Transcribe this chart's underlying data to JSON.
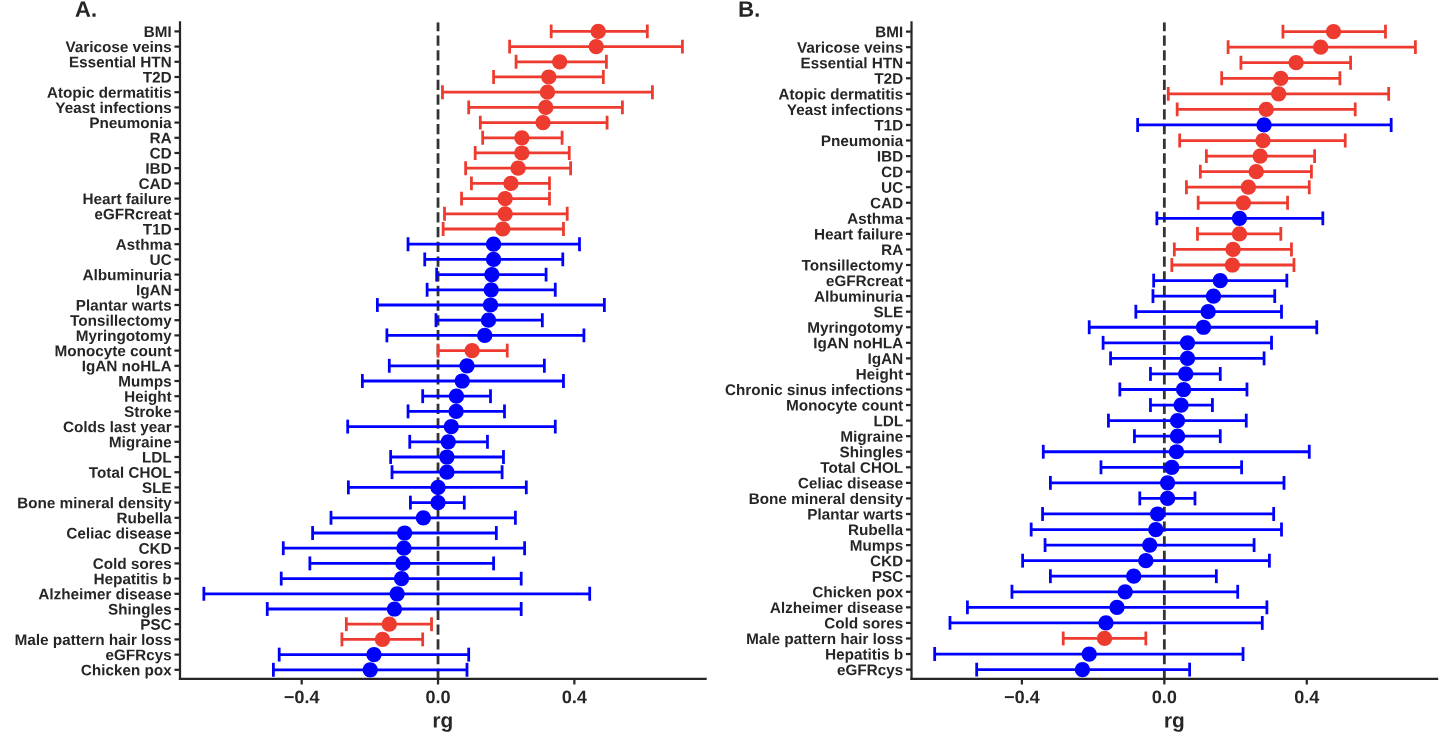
{
  "chart_data": [
    {
      "type": "scatter",
      "title": "A.",
      "xlabel": "rg",
      "xlim": [
        -0.757,
        0.785
      ],
      "xticks": [
        {
          "value": -0.4,
          "label": "−0.4"
        },
        {
          "value": 0,
          "label": "0.0"
        },
        {
          "value": 0.4,
          "label": "0.4"
        }
      ],
      "orientation": "horizontal",
      "marker": "circle",
      "grid": false,
      "legend": false,
      "ref_lines": [
        {
          "axis": "x",
          "value": 0,
          "line_style": "dashed",
          "color": "#333333"
        }
      ],
      "categories": [
        "BMI",
        "Varicose veins",
        "Essential HTN",
        "T2D",
        "Atopic dermatitis",
        "Yeast infections",
        "Pneumonia",
        "RA",
        "CD",
        "IBD",
        "CAD",
        "Heart failure",
        "eGFRcreat",
        "T1D",
        "Asthma",
        "UC",
        "Albuminuria",
        "IgAN",
        "Plantar warts",
        "Tonsillectomy",
        "Myringotomy",
        "Monocyte count",
        "IgAN noHLA",
        "Mumps",
        "Height",
        "Stroke",
        "Colds last year",
        "Migraine",
        "LDL",
        "Total CHOL",
        "SLE",
        "Bone mineral density",
        "Rubella",
        "Celiac disease",
        "CKD",
        "Cold sores",
        "Hepatitis b",
        "Alzheimer disease",
        "Shingles",
        "PSC",
        "Male pattern hair loss",
        "eGFRcys",
        "Chicken pox"
      ],
      "values": [
        0.47,
        0.464,
        0.357,
        0.325,
        0.321,
        0.316,
        0.308,
        0.246,
        0.246,
        0.235,
        0.214,
        0.197,
        0.197,
        0.19,
        0.163,
        0.163,
        0.158,
        0.156,
        0.154,
        0.148,
        0.137,
        0.1,
        0.085,
        0.071,
        0.054,
        0.053,
        0.039,
        0.03,
        0.026,
        0.026,
        0.0,
        0.0,
        -0.043,
        -0.098,
        -0.1,
        -0.103,
        -0.107,
        -0.12,
        -0.128,
        -0.143,
        -0.163,
        -0.188,
        -0.199
      ],
      "errors": [
        [
          0.332,
          0.614
        ],
        [
          0.21,
          0.717
        ],
        [
          0.229,
          0.494
        ],
        [
          0.163,
          0.485
        ],
        [
          0.013,
          0.629
        ],
        [
          0.09,
          0.541
        ],
        [
          0.124,
          0.496
        ],
        [
          0.131,
          0.364
        ],
        [
          0.109,
          0.385
        ],
        [
          0.081,
          0.389
        ],
        [
          0.098,
          0.327
        ],
        [
          0.069,
          0.327
        ],
        [
          0.019,
          0.379
        ],
        [
          0.015,
          0.368
        ],
        [
          -0.088,
          0.415
        ],
        [
          -0.039,
          0.366
        ],
        [
          -0.004,
          0.317
        ],
        [
          -0.032,
          0.344
        ],
        [
          -0.178,
          0.488
        ],
        [
          -0.006,
          0.306
        ],
        [
          -0.15,
          0.428
        ],
        [
          0.0,
          0.203
        ],
        [
          -0.143,
          0.312
        ],
        [
          -0.222,
          0.368
        ],
        [
          -0.045,
          0.154
        ],
        [
          -0.088,
          0.195
        ],
        [
          -0.265,
          0.344
        ],
        [
          -0.083,
          0.145
        ],
        [
          -0.139,
          0.192
        ],
        [
          -0.135,
          0.188
        ],
        [
          -0.263,
          0.259
        ],
        [
          -0.081,
          0.077
        ],
        [
          -0.314,
          0.227
        ],
        [
          -0.368,
          0.171
        ],
        [
          -0.454,
          0.254
        ],
        [
          -0.376,
          0.163
        ],
        [
          -0.46,
          0.244
        ],
        [
          -0.687,
          0.445
        ],
        [
          -0.501,
          0.244
        ],
        [
          -0.269,
          -0.019
        ],
        [
          -0.282,
          -0.045
        ],
        [
          -0.466,
          0.09
        ],
        [
          -0.483,
          0.085
        ]
      ],
      "colors": [
        "#ee3b2f",
        "#ee3b2f",
        "#ee3b2f",
        "#ee3b2f",
        "#ee3b2f",
        "#ee3b2f",
        "#ee3b2f",
        "#ee3b2f",
        "#ee3b2f",
        "#ee3b2f",
        "#ee3b2f",
        "#ee3b2f",
        "#ee3b2f",
        "#ee3b2f",
        "#0000ff",
        "#0000ff",
        "#0000ff",
        "#0000ff",
        "#0000ff",
        "#0000ff",
        "#0000ff",
        "#ee3b2f",
        "#0000ff",
        "#0000ff",
        "#0000ff",
        "#0000ff",
        "#0000ff",
        "#0000ff",
        "#0000ff",
        "#0000ff",
        "#0000ff",
        "#0000ff",
        "#0000ff",
        "#0000ff",
        "#0000ff",
        "#0000ff",
        "#0000ff",
        "#0000ff",
        "#0000ff",
        "#ee3b2f",
        "#ee3b2f",
        "#0000ff",
        "#0000ff"
      ]
    },
    {
      "type": "scatter",
      "title": "B.",
      "xlabel": "rg",
      "xlim": [
        -0.71,
        0.766
      ],
      "xticks": [
        {
          "value": -0.4,
          "label": "−0.4"
        },
        {
          "value": 0,
          "label": "0.0"
        },
        {
          "value": 0.4,
          "label": "0.4"
        }
      ],
      "orientation": "horizontal",
      "marker": "circle",
      "grid": false,
      "legend": false,
      "ref_lines": [
        {
          "axis": "x",
          "value": 0,
          "line_style": "dashed",
          "color": "#333333"
        }
      ],
      "categories": [
        "BMI",
        "Varicose veins",
        "Essential HTN",
        "T2D",
        "Atopic dermatitis",
        "Yeast infections",
        "T1D",
        "Pneumonia",
        "IBD",
        "CD",
        "UC",
        "CAD",
        "Asthma",
        "Heart failure",
        "RA",
        "Tonsillectomy",
        "eGFRcreat",
        "Albuminuria",
        "SLE",
        "Myringotomy",
        "IgAN noHLA",
        "IgAN",
        "Height",
        "Chronic sinus infections",
        "Monocyte count",
        "LDL",
        "Migraine",
        "Shingles",
        "Total CHOL",
        "Celiac disease",
        "Bone mineral density",
        "Plantar warts",
        "Rubella",
        "Mumps",
        "CKD",
        "PSC",
        "Chicken pox",
        "Alzheimer disease",
        "Cold sores",
        "Male pattern hair loss",
        "Hepatitis b",
        "eGFRcys"
      ],
      "values": [
        0.475,
        0.439,
        0.37,
        0.327,
        0.321,
        0.286,
        0.28,
        0.277,
        0.269,
        0.258,
        0.236,
        0.222,
        0.211,
        0.211,
        0.193,
        0.191,
        0.157,
        0.138,
        0.123,
        0.11,
        0.065,
        0.065,
        0.06,
        0.054,
        0.047,
        0.037,
        0.037,
        0.034,
        0.021,
        0.009,
        0.009,
        -0.019,
        -0.024,
        -0.041,
        -0.052,
        -0.086,
        -0.11,
        -0.133,
        -0.164,
        -0.168,
        -0.211,
        -0.23
      ],
      "errors": [
        [
          0.333,
          0.621
        ],
        [
          0.179,
          0.705
        ],
        [
          0.215,
          0.523
        ],
        [
          0.161,
          0.493
        ],
        [
          0.011,
          0.63
        ],
        [
          0.036,
          0.536
        ],
        [
          -0.075,
          0.637
        ],
        [
          0.043,
          0.508
        ],
        [
          0.118,
          0.422
        ],
        [
          0.101,
          0.413
        ],
        [
          0.062,
          0.407
        ],
        [
          0.095,
          0.346
        ],
        [
          -0.021,
          0.445
        ],
        [
          0.093,
          0.327
        ],
        [
          0.028,
          0.357
        ],
        [
          0.021,
          0.364
        ],
        [
          -0.03,
          0.344
        ],
        [
          -0.032,
          0.31
        ],
        [
          -0.08,
          0.329
        ],
        [
          -0.211,
          0.428
        ],
        [
          -0.172,
          0.301
        ],
        [
          -0.151,
          0.28
        ],
        [
          -0.039,
          0.157
        ],
        [
          -0.125,
          0.232
        ],
        [
          -0.039,
          0.135
        ],
        [
          -0.157,
          0.23
        ],
        [
          -0.084,
          0.157
        ],
        [
          -0.34,
          0.407
        ],
        [
          -0.178,
          0.217
        ],
        [
          -0.32,
          0.336
        ],
        [
          -0.069,
          0.086
        ],
        [
          -0.342,
          0.307
        ],
        [
          -0.374,
          0.329
        ],
        [
          -0.335,
          0.252
        ],
        [
          -0.398,
          0.295
        ],
        [
          -0.32,
          0.146
        ],
        [
          -0.428,
          0.206
        ],
        [
          -0.553,
          0.288
        ],
        [
          -0.602,
          0.275
        ],
        [
          -0.284,
          -0.052
        ],
        [
          -0.645,
          0.221
        ],
        [
          -0.527,
          0.071
        ]
      ],
      "colors": [
        "#ee3b2f",
        "#ee3b2f",
        "#ee3b2f",
        "#ee3b2f",
        "#ee3b2f",
        "#ee3b2f",
        "#0000ff",
        "#ee3b2f",
        "#ee3b2f",
        "#ee3b2f",
        "#ee3b2f",
        "#ee3b2f",
        "#0000ff",
        "#ee3b2f",
        "#ee3b2f",
        "#ee3b2f",
        "#0000ff",
        "#0000ff",
        "#0000ff",
        "#0000ff",
        "#0000ff",
        "#0000ff",
        "#0000ff",
        "#0000ff",
        "#0000ff",
        "#0000ff",
        "#0000ff",
        "#0000ff",
        "#0000ff",
        "#0000ff",
        "#0000ff",
        "#0000ff",
        "#0000ff",
        "#0000ff",
        "#0000ff",
        "#0000ff",
        "#0000ff",
        "#0000ff",
        "#0000ff",
        "#ee3b2f",
        "#0000ff",
        "#0000ff"
      ]
    }
  ]
}
